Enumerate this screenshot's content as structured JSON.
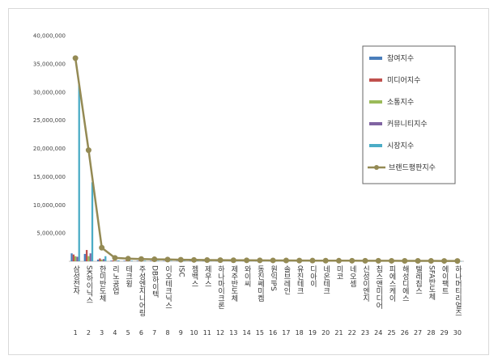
{
  "chart_data": {
    "type": "bar",
    "title": "",
    "xlabel": "",
    "ylabel": "",
    "ylim": [
      0,
      40000000
    ],
    "yticks": [
      "40,000,000",
      "35,000,000",
      "30,000,000",
      "25,000,000",
      "20,000,000",
      "15,000,000",
      "10,000,000",
      "5,000,000",
      ""
    ],
    "grid": false,
    "legend_position": "right",
    "ranks": [
      "1",
      "2",
      "3",
      "4",
      "5",
      "6",
      "7",
      "8",
      "9",
      "10",
      "11",
      "12",
      "13",
      "14",
      "15",
      "16",
      "17",
      "18",
      "19",
      "20",
      "21",
      "22",
      "23",
      "24",
      "25",
      "26",
      "27",
      "28",
      "29",
      "30"
    ],
    "categories": [
      "삼성전자",
      "SK하이닉스",
      "한미반도체",
      "리노공업",
      "테크윙",
      "주성엔지니어링",
      "DB하이텍",
      "이오테크닉스",
      "ISC",
      "젬백스",
      "제우스",
      "하나마이크론",
      "제주반도체",
      "와이씨",
      "동진쎄미켐",
      "원익IPS",
      "솔브레인",
      "유진테크",
      "디아이",
      "네온테크",
      "미코",
      "네오셈",
      "신성이엔지",
      "칩스앤미디어",
      "피에스케이",
      "해성디에스",
      "텔레칩스",
      "SFA반도체",
      "에이팩트",
      "하나머티리얼즈"
    ],
    "series": [
      {
        "name": "참여지수",
        "color": "#4a7ebb",
        "kind": "bar",
        "values": [
          1400000,
          1300000,
          300000,
          120000,
          100000,
          90000,
          80000,
          70000,
          60000,
          50000,
          50000,
          40000,
          40000,
          40000,
          30000,
          30000,
          30000,
          30000,
          20000,
          20000,
          20000,
          20000,
          20000,
          20000,
          20000,
          20000,
          20000,
          10000,
          10000,
          10000
        ]
      },
      {
        "name": "미디어지수",
        "color": "#c0504d",
        "kind": "bar",
        "values": [
          1200000,
          2000000,
          500000,
          150000,
          120000,
          100000,
          90000,
          80000,
          70000,
          60000,
          50000,
          50000,
          40000,
          40000,
          40000,
          30000,
          30000,
          30000,
          30000,
          20000,
          20000,
          20000,
          20000,
          20000,
          20000,
          20000,
          20000,
          20000,
          10000,
          10000
        ]
      },
      {
        "name": "소통지수",
        "color": "#9bbb59",
        "kind": "bar",
        "values": [
          900000,
          900000,
          300000,
          80000,
          60000,
          50000,
          40000,
          40000,
          30000,
          30000,
          30000,
          20000,
          20000,
          20000,
          20000,
          20000,
          20000,
          10000,
          10000,
          10000,
          10000,
          10000,
          10000,
          10000,
          10000,
          10000,
          10000,
          10000,
          10000,
          10000
        ]
      },
      {
        "name": "커뮤니티지수",
        "color": "#8064a2",
        "kind": "bar",
        "values": [
          800000,
          1400000,
          400000,
          100000,
          80000,
          60000,
          50000,
          40000,
          40000,
          30000,
          30000,
          30000,
          20000,
          20000,
          20000,
          20000,
          20000,
          20000,
          10000,
          10000,
          10000,
          10000,
          10000,
          10000,
          10000,
          10000,
          10000,
          10000,
          10000,
          10000
        ]
      },
      {
        "name": "시장지수",
        "color": "#4bacc6",
        "kind": "bar",
        "values": [
          31300000,
          14000000,
          900000,
          150000,
          100000,
          100000,
          80000,
          70000,
          60000,
          60000,
          50000,
          50000,
          40000,
          40000,
          40000,
          30000,
          30000,
          30000,
          30000,
          20000,
          20000,
          20000,
          20000,
          20000,
          20000,
          20000,
          20000,
          20000,
          20000,
          20000
        ]
      },
      {
        "name": "브랜드평판지수",
        "color": "#948a54",
        "kind": "line",
        "values": [
          36000000,
          19700000,
          2400000,
          600000,
          460000,
          400000,
          350000,
          310000,
          270000,
          240000,
          220000,
          200000,
          180000,
          170000,
          160000,
          150000,
          140000,
          130000,
          120000,
          110000,
          100000,
          95000,
          90000,
          85000,
          80000,
          75000,
          70000,
          65000,
          60000,
          55000
        ]
      }
    ]
  }
}
